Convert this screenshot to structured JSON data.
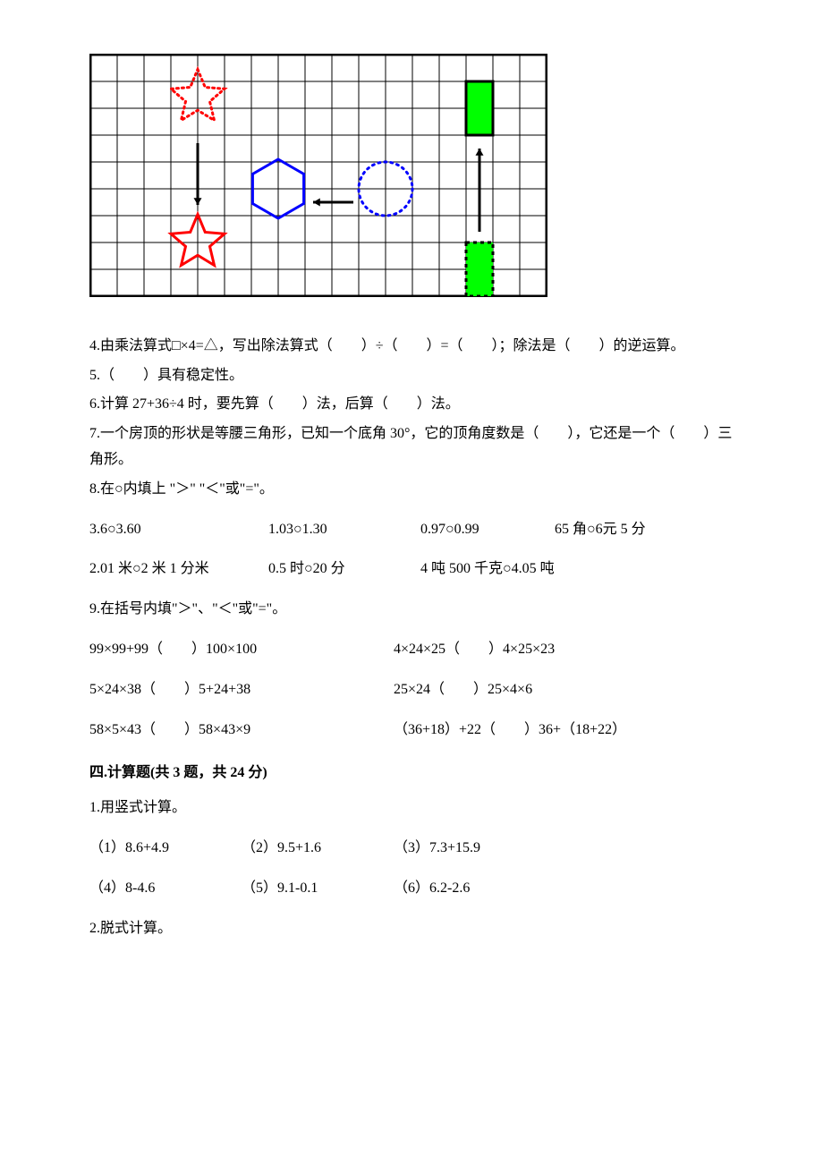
{
  "figure": {
    "cols": 17,
    "rows": 9,
    "cell_size": 30,
    "colors": {
      "grid_line": "#000000",
      "background": "#ffffff",
      "star_dotted": "#ff0000",
      "star_solid": "#ff0000",
      "hexagon": "#0000ff",
      "circle_dotted": "#0000ff",
      "rect_green": "#00ff00",
      "rect_green_dotted": "#00ff00",
      "arrow": "#000000"
    },
    "line_width": 2
  },
  "q4": "4.由乘法算式□×4=△，写出除法算式（　　）÷（　　）=（　　）；除法是（　　）的逆运算。",
  "q5": "5.（　　）具有稳定性。",
  "q6": "6.计算 27+36÷4 时，要先算（　　）法，后算（　　）法。",
  "q7": "7.一个房顶的形状是等腰三角形，已知一个底角 30°，它的顶角度数是（　　），它还是一个（　　）三角形。",
  "q8_title": "8.在○内填上 \"＞\" \"＜\"或\"=\"。",
  "q8_row1": [
    "3.6○3.60",
    "1.03○1.30",
    "0.97○0.99",
    "65 角○6元 5 分"
  ],
  "q8_row2": [
    "2.01 米○2 米 1 分米",
    "0.5 时○20 分",
    "4 吨 500 千克○4.05 吨"
  ],
  "q9_title": "9.在括号内填\"＞\"、\"＜\"或\"=\"。",
  "q9_rows": [
    [
      "99×99+99（　　）100×100",
      "4×24×25（　　）4×25×23"
    ],
    [
      "5×24×38（　　）5+24+38",
      "25×24（　　）25×4×6"
    ],
    [
      "58×5×43（　　）58×43×9",
      "（36+18）+22（　　）36+（18+22）"
    ]
  ],
  "section4_header": "四.计算题(共 3 题，共 24 分)",
  "s4_q1_title": "1.用竖式计算。",
  "s4_q1_rows": [
    [
      "（1）8.6+4.9",
      "（2）9.5+1.6",
      "（3）7.3+15.9"
    ],
    [
      "（4）8-4.6",
      "（5）9.1-0.1",
      "（6）6.2-2.6"
    ]
  ],
  "s4_q2_title": "2.脱式计算。"
}
